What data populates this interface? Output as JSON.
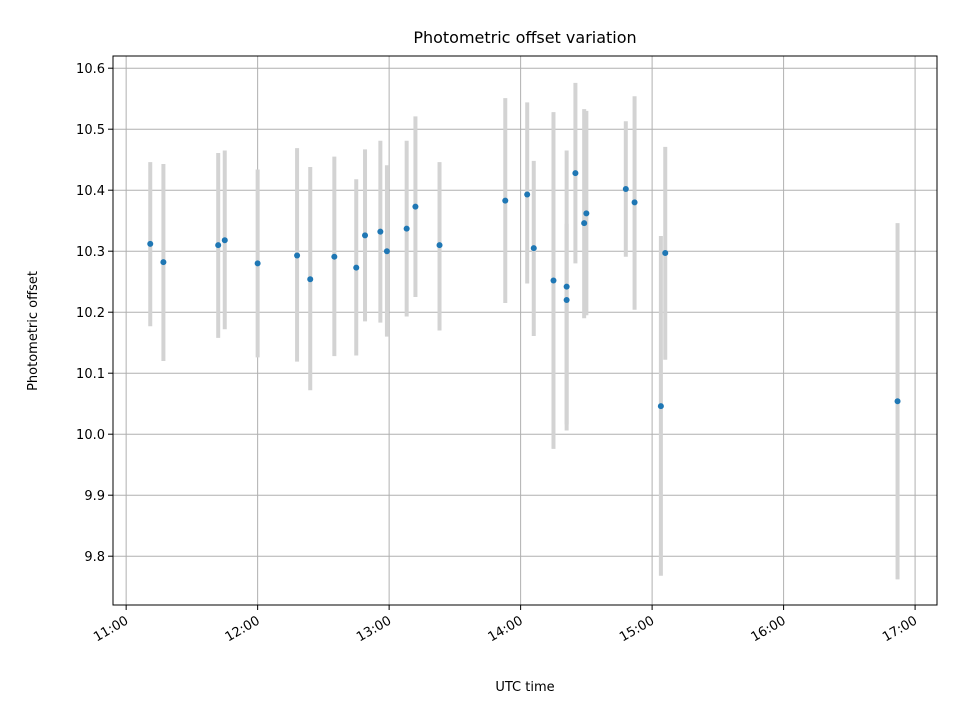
{
  "chart_data": {
    "type": "scatter",
    "title": "Photometric offset variation",
    "xlabel": "UTC time",
    "ylabel": "Photometric offset",
    "x_axis": "time (UTC, HH:MM)",
    "xlim": [
      "10:54",
      "17:10"
    ],
    "ylim": [
      9.72,
      10.62
    ],
    "xticks": [
      "11:00",
      "12:00",
      "13:00",
      "14:00",
      "15:00",
      "16:00",
      "17:00"
    ],
    "yticks": [
      "9.8",
      "9.9",
      "10.0",
      "10.1",
      "10.2",
      "10.3",
      "10.4",
      "10.5",
      "10.6"
    ],
    "grid": true,
    "colors": {
      "point": "#1f77b4",
      "errorbar": "#d3d3d3",
      "grid": "#b0b0b0"
    },
    "series": [
      {
        "points": [
          {
            "x": "11:11",
            "y": 10.312,
            "err_low": 10.177,
            "err_high": 10.446
          },
          {
            "x": "11:17",
            "y": 10.282,
            "err_low": 10.12,
            "err_high": 10.443
          },
          {
            "x": "11:42",
            "y": 10.31,
            "err_low": 10.158,
            "err_high": 10.461
          },
          {
            "x": "11:45",
            "y": 10.318,
            "err_low": 10.172,
            "err_high": 10.465
          },
          {
            "x": "12:00",
            "y": 10.28,
            "err_low": 10.126,
            "err_high": 10.434
          },
          {
            "x": "12:18",
            "y": 10.293,
            "err_low": 10.119,
            "err_high": 10.469
          },
          {
            "x": "12:24",
            "y": 10.254,
            "err_low": 10.072,
            "err_high": 10.438
          },
          {
            "x": "12:35",
            "y": 10.291,
            "err_low": 10.128,
            "err_high": 10.455
          },
          {
            "x": "12:45",
            "y": 10.273,
            "err_low": 10.129,
            "err_high": 10.418
          },
          {
            "x": "12:49",
            "y": 10.326,
            "err_low": 10.185,
            "err_high": 10.467
          },
          {
            "x": "12:56",
            "y": 10.332,
            "err_low": 10.183,
            "err_high": 10.481
          },
          {
            "x": "12:59",
            "y": 10.3,
            "err_low": 10.16,
            "err_high": 10.441
          },
          {
            "x": "13:08",
            "y": 10.337,
            "err_low": 10.193,
            "err_high": 10.481
          },
          {
            "x": "13:12",
            "y": 10.373,
            "err_low": 10.225,
            "err_high": 10.521
          },
          {
            "x": "13:23",
            "y": 10.31,
            "err_low": 10.17,
            "err_high": 10.446
          },
          {
            "x": "13:53",
            "y": 10.383,
            "err_low": 10.215,
            "err_high": 10.551
          },
          {
            "x": "14:03",
            "y": 10.393,
            "err_low": 10.247,
            "err_high": 10.544
          },
          {
            "x": "14:06",
            "y": 10.305,
            "err_low": 10.161,
            "err_high": 10.448
          },
          {
            "x": "14:15",
            "y": 10.252,
            "err_low": 9.976,
            "err_high": 10.528
          },
          {
            "x": "14:21",
            "y": 10.242,
            "err_low": 10.016,
            "err_high": 10.465
          },
          {
            "x": "14:21",
            "y": 10.22,
            "err_low": 10.006,
            "err_high": 10.345
          },
          {
            "x": "14:25",
            "y": 10.428,
            "err_low": 10.28,
            "err_high": 10.576
          },
          {
            "x": "14:29",
            "y": 10.346,
            "err_low": 10.19,
            "err_high": 10.533
          },
          {
            "x": "14:30",
            "y": 10.362,
            "err_low": 10.195,
            "err_high": 10.53
          },
          {
            "x": "14:48",
            "y": 10.402,
            "err_low": 10.291,
            "err_high": 10.513
          },
          {
            "x": "14:52",
            "y": 10.38,
            "err_low": 10.204,
            "err_high": 10.554
          },
          {
            "x": "15:04",
            "y": 10.046,
            "err_low": 9.768,
            "err_high": 10.325
          },
          {
            "x": "15:06",
            "y": 10.297,
            "err_low": 10.122,
            "err_high": 10.471
          },
          {
            "x": "16:52",
            "y": 10.054,
            "err_low": 9.762,
            "err_high": 10.346
          }
        ]
      }
    ]
  }
}
